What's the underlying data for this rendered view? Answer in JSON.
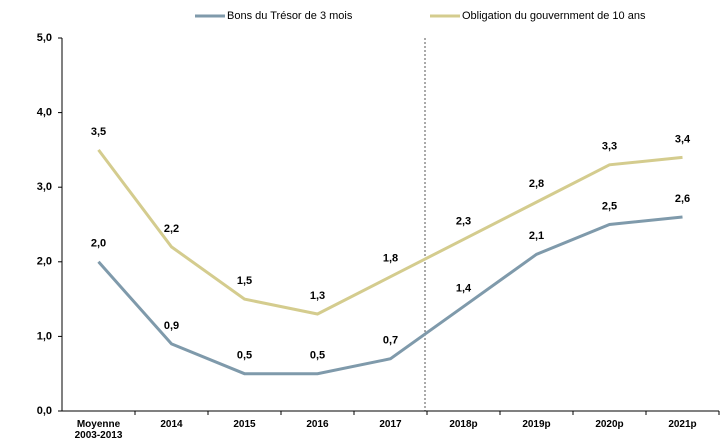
{
  "chart_data": {
    "type": "line",
    "categories": [
      "Moyenne 2003-2013",
      "2014",
      "2015",
      "2016",
      "2017",
      "2018p",
      "2019p",
      "2020p",
      "2021p"
    ],
    "series": [
      {
        "name": "Bons du Trésor de 3 mois",
        "color": "#7f9aab",
        "values": [
          2.0,
          0.9,
          0.5,
          0.5,
          0.7,
          1.4,
          2.1,
          2.5,
          2.6
        ],
        "value_labels": [
          "2,0",
          "0,9",
          "0,5",
          "0,5",
          "0,7",
          "1,4",
          "2,1",
          "2,5",
          "2,6"
        ]
      },
      {
        "name": "Obligation du gouvernment de 10 ans",
        "color": "#d4cc8e",
        "values": [
          3.5,
          2.2,
          1.5,
          1.3,
          1.8,
          2.3,
          2.8,
          3.3,
          3.4
        ],
        "value_labels": [
          "3,5",
          "2,2",
          "1,5",
          "1,3",
          "1,8",
          "2,3",
          "2,8",
          "3,3",
          "3,4"
        ]
      }
    ],
    "ylim": [
      0,
      5
    ],
    "yticks": [
      {
        "value": 0,
        "label": "0,0"
      },
      {
        "value": 1,
        "label": "1,0"
      },
      {
        "value": 2,
        "label": "2,0"
      },
      {
        "value": 3,
        "label": "3,0"
      },
      {
        "value": 4,
        "label": "4,0"
      },
      {
        "value": 5,
        "label": "5,0"
      }
    ],
    "grid": false,
    "legend": "top"
  }
}
